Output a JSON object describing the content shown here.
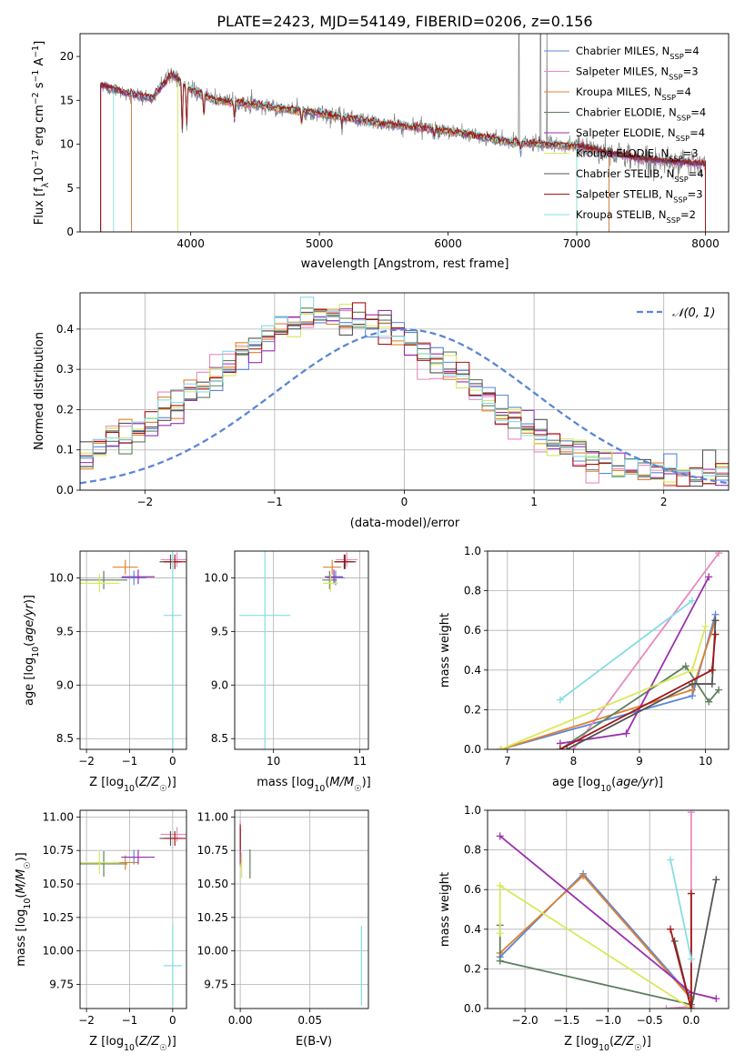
{
  "title": "PLATE=2423, MJD=54149, FIBERID=0206, z=0.156",
  "series_colors": [
    "#5b86d8",
    "#e88ac0",
    "#e0822e",
    "#5e7f5e",
    "#9b2fae",
    "#d9e95a",
    "#555555",
    "#a31515",
    "#85dde4"
  ],
  "chart_data": [
    {
      "type": "line",
      "title": "PLATE=2423, MJD=54149, FIBERID=0206, z=0.156",
      "xlabel": "wavelength [Angstrom, rest frame]",
      "ylabel": "Flux [f_λ 10^-17 erg cm^-2 s^-1 A^-1]",
      "xlim": [
        3140,
        8180
      ],
      "ylim": [
        0,
        22.6
      ],
      "xticks": [
        4000,
        5000,
        6000,
        7000,
        8000
      ],
      "yticks": [
        0,
        5,
        10,
        15,
        20
      ],
      "legend": "top-right",
      "legend_entries": [
        {
          "main": "Chabrier MILES, N",
          "sub": "SSP",
          "tail": "=4"
        },
        {
          "main": "Salpeter MILES, N",
          "sub": "SSP",
          "tail": "=3"
        },
        {
          "main": "Kroupa MILES, N",
          "sub": "SSP",
          "tail": "=4"
        },
        {
          "main": "Chabrier ELODIE, N",
          "sub": "SSP",
          "tail": "=4"
        },
        {
          "main": "Salpeter ELODIE, N",
          "sub": "SSP",
          "tail": "=4"
        },
        {
          "main": "Kroupa ELODIE, N",
          "sub": "SSP",
          "tail": "=3"
        },
        {
          "main": "Chabrier STELIB, N",
          "sub": "SSP",
          "tail": "=4"
        },
        {
          "main": "Salpeter STELIB, N",
          "sub": "SSP",
          "tail": "=3"
        },
        {
          "main": "Kroupa STELIB, N",
          "sub": "SSP",
          "tail": "=2"
        }
      ],
      "continuum": {
        "x": [
          3300,
          3500,
          3700,
          3850,
          4000,
          4200,
          4500,
          5000,
          5500,
          6000,
          6500,
          7000,
          7500,
          8000
        ],
        "y": [
          16.8,
          15.8,
          15.2,
          18.0,
          16.2,
          15.0,
          14.5,
          13.5,
          12.3,
          11.5,
          10.2,
          9.8,
          8.3,
          7.7
        ]
      },
      "model_ranges": [
        [
          3540,
          7250
        ],
        [
          3300,
          8000
        ],
        [
          3540,
          7250
        ],
        [
          3300,
          8000
        ],
        [
          3300,
          8000
        ],
        [
          3900,
          7000
        ],
        [
          3300,
          8000
        ],
        [
          3300,
          8000
        ],
        [
          3400,
          7000
        ]
      ]
    },
    {
      "type": "histogram",
      "xlabel": "(data-model)/error",
      "ylabel": "Normed distribution",
      "xlim": [
        -2.5,
        2.5
      ],
      "ylim": [
        0,
        0.49
      ],
      "xticks": [
        -2,
        -1,
        0,
        1,
        2
      ],
      "yticks": [
        0.0,
        0.1,
        0.2,
        0.3,
        0.4
      ],
      "legend": "top-right",
      "legend_label": "𝒩(0, 1)",
      "bin_edges_range": [
        -2.5,
        2.5
      ],
      "n_bins": 50,
      "reference_curve": "normal pdf, mean 0, sigma 1"
    },
    {
      "type": "scatter",
      "xlabel": "Z [log10(Z/Z☉)]",
      "ylabel": "age [log10(age/yr)]",
      "xlim": [
        -2.15,
        0.32
      ],
      "ylim": [
        8.4,
        10.25
      ],
      "xticks": [
        -2,
        -1,
        0
      ],
      "yticks": [
        8.5,
        9.0,
        9.5,
        10.0
      ],
      "points": [
        {
          "x": -0.9,
          "y": 10.0
        },
        {
          "x": 0.1,
          "y": 10.17
        },
        {
          "x": -1.1,
          "y": 10.1
        },
        {
          "x": -1.6,
          "y": 9.98
        },
        {
          "x": -0.8,
          "y": 10.01
        },
        {
          "x": -1.7,
          "y": 9.95
        },
        {
          "x": -0.05,
          "y": 10.15
        },
        {
          "x": 0.05,
          "y": 10.15
        },
        {
          "x": 0.0,
          "y": 9.65
        }
      ]
    },
    {
      "type": "scatter",
      "xlabel": "mass [log10(M/M☉)]",
      "xlim": [
        9.55,
        11.1
      ],
      "ylim": [
        8.4,
        10.25
      ],
      "xticks": [
        10,
        11
      ],
      "yticks": [
        8.5,
        9.0,
        9.5,
        10.0
      ],
      "points": [
        {
          "x": 10.72,
          "y": 10.0
        },
        {
          "x": 10.85,
          "y": 10.17
        },
        {
          "x": 10.68,
          "y": 10.1
        },
        {
          "x": 10.65,
          "y": 9.98
        },
        {
          "x": 10.7,
          "y": 10.01
        },
        {
          "x": 10.66,
          "y": 9.95
        },
        {
          "x": 10.83,
          "y": 10.15
        },
        {
          "x": 10.82,
          "y": 10.15
        },
        {
          "x": 9.9,
          "y": 9.65
        }
      ]
    },
    {
      "type": "line",
      "xlabel": "age [log10(age/yr)]",
      "ylabel": "mass weight",
      "xlim": [
        6.7,
        10.35
      ],
      "ylim": [
        0,
        1
      ],
      "xticks": [
        7,
        8,
        9,
        10
      ],
      "yticks": [
        0.0,
        0.2,
        0.4,
        0.6,
        0.8,
        1.0
      ],
      "series": [
        {
          "x": [
            6.9,
            9.8,
            10.15
          ],
          "y": [
            0.0,
            0.27,
            0.68
          ]
        },
        {
          "x": [
            8.0,
            10.2
          ],
          "y": [
            0.0,
            0.99
          ]
        },
        {
          "x": [
            6.9,
            9.8,
            10.15
          ],
          "y": [
            0.0,
            0.3,
            0.65
          ]
        },
        {
          "x": [
            7.8,
            9.7,
            10.05,
            10.2
          ],
          "y": [
            0.0,
            0.42,
            0.24,
            0.3
          ]
        },
        {
          "x": [
            7.8,
            8.8,
            10.05
          ],
          "y": [
            0.03,
            0.08,
            0.87
          ]
        },
        {
          "x": [
            6.9,
            9.8,
            10.0
          ],
          "y": [
            0.0,
            0.4,
            0.62
          ]
        },
        {
          "x": [
            7.9,
            9.8,
            10.1,
            10.15
          ],
          "y": [
            0.0,
            0.33,
            0.33,
            0.65
          ]
        },
        {
          "x": [
            7.8,
            10.1,
            10.15
          ],
          "y": [
            0.0,
            0.4,
            0.58
          ]
        },
        {
          "x": [
            7.8,
            9.8
          ],
          "y": [
            0.25,
            0.75
          ]
        }
      ]
    },
    {
      "type": "scatter",
      "xlabel": "Z [log10(Z/Z☉)]",
      "ylabel": "mass [log10(M/M☉)]",
      "xlim": [
        -2.15,
        0.32
      ],
      "ylim": [
        9.57,
        11.05
      ],
      "xticks": [
        -2,
        -1,
        0
      ],
      "yticks": [
        9.75,
        10.0,
        10.25,
        10.5,
        10.75,
        11.0
      ],
      "points": [
        {
          "x": -0.9,
          "y": 10.7
        },
        {
          "x": 0.1,
          "y": 10.87
        },
        {
          "x": -1.1,
          "y": 10.66
        },
        {
          "x": -1.6,
          "y": 10.65
        },
        {
          "x": -0.8,
          "y": 10.7
        },
        {
          "x": -1.7,
          "y": 10.66
        },
        {
          "x": -0.05,
          "y": 10.84
        },
        {
          "x": 0.05,
          "y": 10.84
        },
        {
          "x": 0.0,
          "y": 9.89
        }
      ]
    },
    {
      "type": "scatter",
      "xlabel": "E(B-V)",
      "xlim": [
        -0.004,
        0.092
      ],
      "ylim": [
        9.57,
        11.05
      ],
      "xticks": [
        0.0,
        0.05
      ],
      "yticks": [
        9.75,
        10.0,
        10.25,
        10.5,
        10.75,
        11.0
      ],
      "points": [
        {
          "x": 0.0,
          "y": 10.8
        },
        {
          "x": 0.0,
          "y": 10.88
        },
        {
          "x": 0.0,
          "y": 10.7
        },
        {
          "x": 0.007,
          "y": 10.65
        },
        {
          "x": 0.0,
          "y": 10.72
        },
        {
          "x": 0.001,
          "y": 10.64
        },
        {
          "x": 0.0,
          "y": 10.85
        },
        {
          "x": 0.0,
          "y": 10.85
        },
        {
          "x": 0.087,
          "y": 9.89
        }
      ]
    },
    {
      "type": "line",
      "xlabel": "Z [log10(Z/Z☉)]",
      "ylabel": "mass weight",
      "xlim": [
        -2.45,
        0.45
      ],
      "ylim": [
        0,
        1
      ],
      "xticks": [
        -2.0,
        -1.5,
        -1.0,
        -0.5,
        0.0
      ],
      "yticks": [
        0.0,
        0.2,
        0.4,
        0.6,
        0.8,
        1.0
      ],
      "series": [
        {
          "x": [
            -2.3,
            -1.3,
            0.0
          ],
          "y": [
            0.26,
            0.68,
            0.06
          ]
        },
        {
          "x": [
            -0.3,
            0.0,
            0.0
          ],
          "y": [
            0.0,
            0.01,
            0.99
          ]
        },
        {
          "x": [
            -2.3,
            -1.3,
            0.0
          ],
          "y": [
            0.28,
            0.67,
            0.05
          ]
        },
        {
          "x": [
            -2.3,
            -2.3,
            0.0
          ],
          "y": [
            0.42,
            0.24,
            0.02
          ]
        },
        {
          "x": [
            -2.3,
            0.0,
            0.3
          ],
          "y": [
            0.87,
            0.08,
            0.05
          ]
        },
        {
          "x": [
            -2.3,
            -2.3,
            0.0
          ],
          "y": [
            0.38,
            0.62,
            0.0
          ]
        },
        {
          "x": [
            -0.2,
            0.0,
            0.3
          ],
          "y": [
            0.34,
            0.0,
            0.65
          ]
        },
        {
          "x": [
            -0.25,
            0.0,
            0.0
          ],
          "y": [
            0.4,
            0.0,
            0.58
          ]
        },
        {
          "x": [
            -0.25,
            0.0
          ],
          "y": [
            0.75,
            0.25
          ]
        }
      ]
    }
  ]
}
